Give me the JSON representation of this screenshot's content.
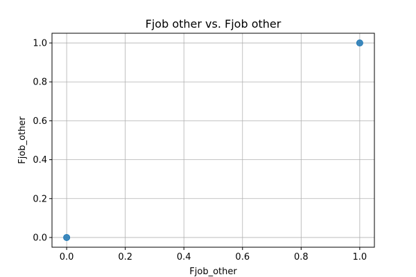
{
  "chart_data": {
    "type": "scatter",
    "title": "Fjob other vs. Fjob other",
    "xlabel": "Fjob_other",
    "ylabel": "Fjob_other",
    "xlim": [
      -0.05,
      1.05
    ],
    "ylim": [
      -0.05,
      1.05
    ],
    "xticks": [
      0.0,
      0.2,
      0.4,
      0.6,
      0.8,
      1.0
    ],
    "yticks": [
      0.0,
      0.2,
      0.4,
      0.6,
      0.8,
      1.0
    ],
    "xtick_labels": [
      "0.0",
      "0.2",
      "0.4",
      "0.6",
      "0.8",
      "1.0"
    ],
    "ytick_labels": [
      "0.0",
      "0.2",
      "0.4",
      "0.6",
      "0.8",
      "1.0"
    ],
    "grid": true,
    "series": [
      {
        "name": "Fjob_other",
        "x": [
          0,
          1
        ],
        "y": [
          0,
          1
        ],
        "color": "#1f77b4"
      }
    ]
  }
}
